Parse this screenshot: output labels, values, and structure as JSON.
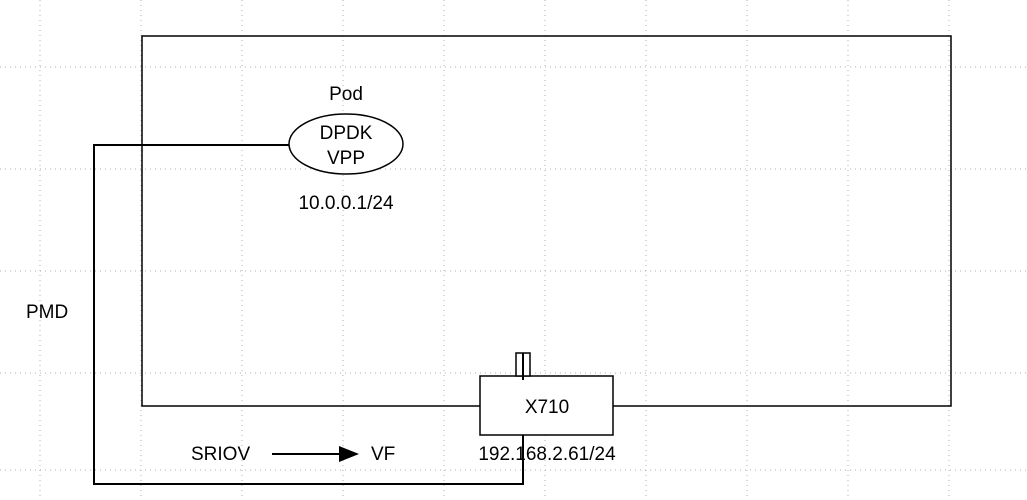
{
  "diagram": {
    "pod": {
      "title": "Pod",
      "line1": "DPDK",
      "line2": "VPP",
      "ip": "10.0.0.1/24"
    },
    "nic": {
      "label": "X710",
      "ip": "192.168.2.61/24"
    },
    "pmd_label": "PMD",
    "sriov_label": "SRIOV",
    "vf_label": "VF"
  },
  "colors": {
    "line": "#000000",
    "grid": "#b0b0b0",
    "background": "#ffffff"
  }
}
